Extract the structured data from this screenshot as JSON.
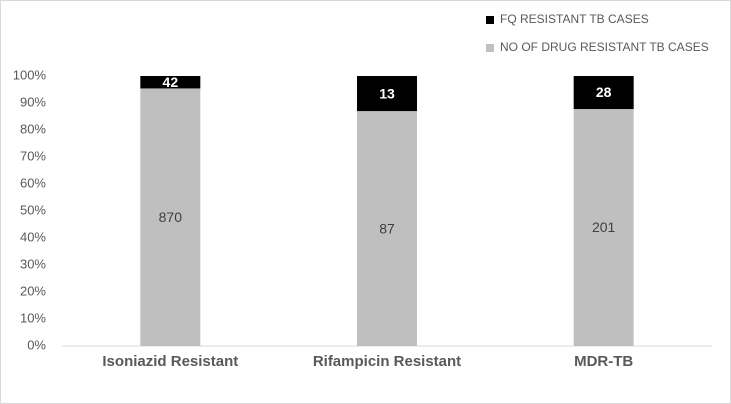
{
  "chart_data": {
    "type": "bar",
    "stacking": "percent",
    "categories": [
      "Isoniazid Resistant",
      "Rifampicin Resistant",
      "MDR-TB"
    ],
    "series": [
      {
        "name": "NO OF DRUG RESISTANT TB CASES",
        "color": "#bfbfbf",
        "values": [
          870,
          87,
          201
        ]
      },
      {
        "name": "FQ RESISTANT TB CASES",
        "color": "#000000",
        "values": [
          42,
          13,
          28
        ]
      }
    ],
    "ylim": [
      0,
      100
    ],
    "yticks": [
      {
        "value": 0,
        "label": "0%"
      },
      {
        "value": 10,
        "label": "10%"
      },
      {
        "value": 20,
        "label": "20%"
      },
      {
        "value": 30,
        "label": "30%"
      },
      {
        "value": 40,
        "label": "40%"
      },
      {
        "value": 50,
        "label": "50%"
      },
      {
        "value": 60,
        "label": "60%"
      },
      {
        "value": 70,
        "label": "70%"
      },
      {
        "value": 80,
        "label": "80%"
      },
      {
        "value": 90,
        "label": "90%"
      },
      {
        "value": 100,
        "label": "100%"
      }
    ],
    "grid": false,
    "legend": "top-right"
  }
}
